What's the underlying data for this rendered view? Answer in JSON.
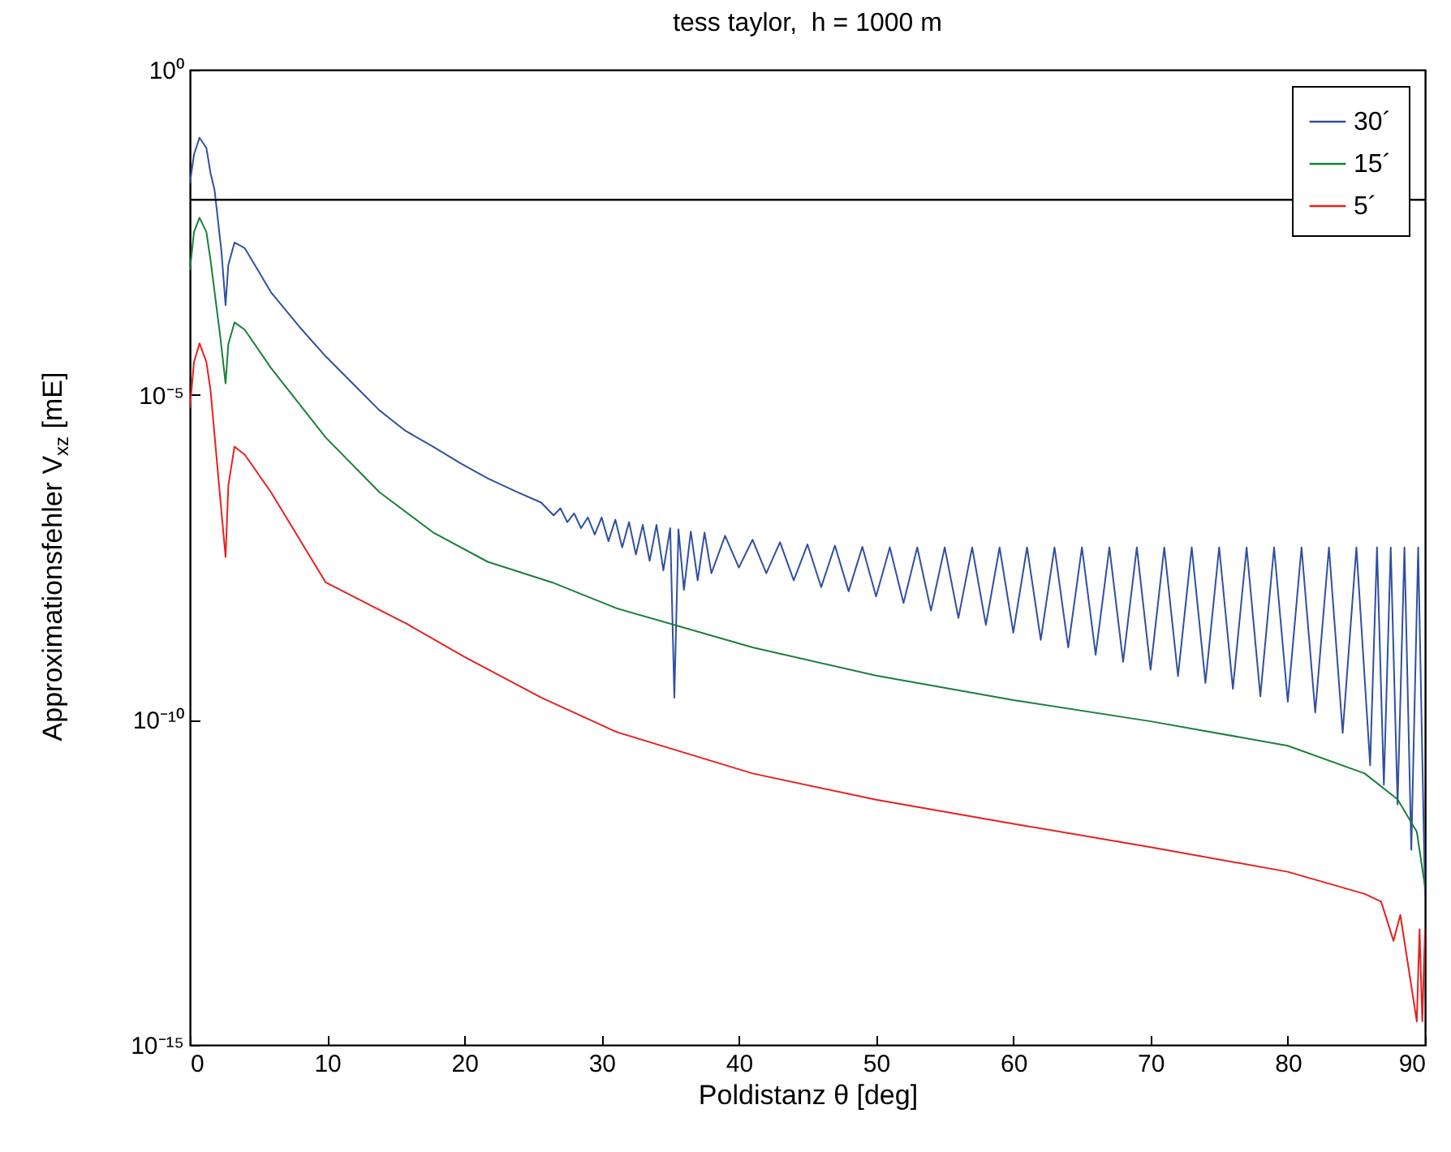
{
  "chart_data": {
    "type": "line",
    "title": "tess taylor,  h = 1000 m",
    "xlabel": "Poldistanz θ [deg]",
    "ylabel": "Approximationsfehler V$_{xz}$ [mE]",
    "xlim": [
      0,
      90
    ],
    "xticks": [
      0,
      10,
      20,
      30,
      40,
      50,
      60,
      70,
      80,
      90
    ],
    "ylim": [
      1e-15,
      1
    ],
    "yticks": [
      {
        "value": 1,
        "label": "10⁰"
      },
      {
        "value": 1e-05,
        "label": "10⁻⁵"
      },
      {
        "value": 1e-10,
        "label": "10⁻¹⁰"
      },
      {
        "value": 1e-15,
        "label": "10⁻¹⁵"
      }
    ],
    "log": true,
    "legend": "top right",
    "ref_lines": [
      {
        "axis": "y",
        "value": 0.01,
        "color": "#000000"
      }
    ],
    "series": [
      {
        "name": "30´",
        "color": "#3050a0",
        "x": [
          0,
          0.3,
          0.7,
          1.2,
          1.5,
          1.8,
          2.3,
          2.6,
          2.8,
          3.25,
          4,
          5,
          5.9,
          8,
          9.9,
          12,
          13.8,
          15.7,
          17.7,
          19.7,
          21.7,
          23.7,
          25.6,
          26.5,
          27,
          27.5,
          28,
          28.5,
          29,
          29.5,
          30,
          30.5,
          31,
          31.5,
          32,
          32.5,
          33,
          33.5,
          34,
          34.5,
          35,
          35.3,
          35.6,
          36,
          36.5,
          37,
          37.5,
          38,
          39,
          40,
          41,
          42,
          43,
          44,
          45,
          46,
          47,
          48,
          49,
          50,
          51,
          52,
          53,
          54,
          55,
          56,
          57,
          58,
          59,
          60,
          61,
          62,
          63,
          64,
          65,
          66,
          67,
          68,
          69,
          70,
          71,
          72,
          73,
          74,
          75,
          76,
          77,
          78,
          79,
          80,
          81,
          82,
          83,
          84,
          85,
          86,
          86.5,
          87,
          87.5,
          88,
          88.5,
          89,
          89.5,
          90
        ],
        "values": [
          0.018,
          0.05,
          0.09,
          0.063,
          0.026,
          0.014,
          0.0016,
          0.00024,
          0.001,
          0.0022,
          0.0018,
          0.0008,
          0.00038,
          0.00011,
          3.9e-05,
          1.4e-05,
          5.8e-06,
          2.8e-06,
          1.6e-06,
          8.9e-07,
          5.2e-07,
          3.3e-07,
          2.2e-07,
          1.4e-07,
          1.8e-07,
          1.1e-07,
          1.5e-07,
          8.9e-08,
          1.3e-07,
          7.1e-08,
          1.3e-07,
          5.6e-08,
          1.2e-07,
          4.5e-08,
          1.1e-07,
          3.5e-08,
          1e-07,
          2.8e-08,
          1e-07,
          2e-08,
          8.9e-08,
          2.2e-10,
          8.5e-08,
          1e-08,
          7.9e-08,
          1.4e-08,
          7.6e-08,
          1.8e-08,
          6.8e-08,
          2.2e-08,
          5.9e-08,
          1.8e-08,
          5.4e-08,
          1.4e-08,
          5e-08,
          1.1e-08,
          4.8e-08,
          9.5e-09,
          4.6e-08,
          7.9e-09,
          4.5e-08,
          6.3e-09,
          4.5e-08,
          4.8e-09,
          4.5e-08,
          3.7e-09,
          4.5e-08,
          2.9e-09,
          4.5e-08,
          2.2e-09,
          4.5e-08,
          1.7e-09,
          4.5e-08,
          1.3e-09,
          4.5e-08,
          1e-09,
          4.5e-08,
          7.8e-10,
          4.5e-08,
          5.9e-10,
          4.5e-08,
          4.7e-10,
          4.5e-08,
          3.7e-10,
          4.5e-08,
          3e-10,
          4.5e-08,
          2.3e-10,
          4.5e-08,
          1.9e-10,
          4.5e-08,
          1.3e-10,
          4.5e-08,
          6.3e-11,
          4.5e-08,
          2e-11,
          4.5e-08,
          1e-11,
          4.5e-08,
          5e-12,
          4.5e-08,
          1e-12,
          4.5e-08,
          2e-13
        ]
      },
      {
        "name": "15´",
        "color": "#1a7f3a",
        "x": [
          0,
          0.3,
          0.7,
          1.2,
          1.5,
          2.2,
          2.6,
          2.8,
          3.25,
          4,
          5.9,
          9.9,
          13.8,
          17.7,
          21.7,
          26.4,
          31.1,
          41,
          50,
          60.1,
          70,
          80,
          85.6,
          88,
          89.4,
          90
        ],
        "values": [
          0.00083,
          0.0032,
          0.0053,
          0.0032,
          0.0012,
          8.3e-05,
          1.5e-05,
          6e-05,
          0.00013,
          0.0001,
          2.6e-05,
          2.2e-06,
          3.2e-07,
          7.7e-08,
          2.7e-08,
          1.3e-08,
          5.2e-09,
          1.3e-09,
          4.8e-10,
          2e-10,
          9.5e-11,
          4e-11,
          1.5e-11,
          6e-12,
          1.9e-12,
          2.7e-13
        ]
      },
      {
        "name": "5´",
        "color": "#e8201f",
        "x": [
          0,
          0.3,
          0.7,
          1.2,
          1.5,
          2.2,
          2.6,
          2.8,
          3.25,
          4,
          5.9,
          9.9,
          15.8,
          20,
          25.6,
          31.1,
          41,
          50,
          60.1,
          70,
          80,
          85.6,
          86.8,
          87.7,
          88.2,
          89.4,
          89.6,
          89.8,
          90
        ],
        "values": [
          6.3e-06,
          3.2e-05,
          6.2e-05,
          3.2e-05,
          1.2e-05,
          2.7e-07,
          3.2e-08,
          4e-07,
          1.6e-06,
          1.2e-06,
          3.2e-07,
          1.3e-08,
          3e-09,
          9.3e-10,
          2.2e-10,
          6.5e-11,
          1.5e-11,
          5.9e-12,
          2.5e-12,
          1.1e-12,
          4.6e-13,
          2.1e-13,
          1.6e-13,
          4e-14,
          1e-13,
          2.3e-15,
          6e-14,
          2.3e-15,
          6e-14
        ]
      }
    ]
  }
}
